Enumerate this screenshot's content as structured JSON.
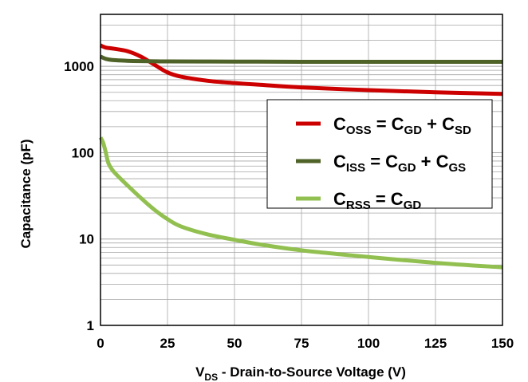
{
  "chart_data": {
    "type": "line",
    "title": "",
    "xlabel": {
      "main": "V",
      "sub": "DS",
      "rest": " - Drain-to-Source Voltage (V)"
    },
    "ylabel": "Capacitance (pF)",
    "xlim": [
      0,
      150
    ],
    "ylim": [
      1,
      4000
    ],
    "yscale": "log",
    "grid": true,
    "legend_position": "right-center",
    "x_ticks": [
      "0",
      "25",
      "50",
      "75",
      "100",
      "125",
      "150"
    ],
    "y_ticks": [
      "1",
      "10",
      "100",
      "1000"
    ],
    "series": [
      {
        "name": "C_OSS = C_GD + C_SD",
        "legend": [
          [
            "C",
            "OSS"
          ],
          [
            " = C",
            null
          ],
          [
            "",
            "GD"
          ],
          [
            " + C",
            null
          ],
          [
            "",
            "SD"
          ]
        ],
        "color": "#cc0000",
        "x": [
          0,
          2,
          5,
          10,
          15,
          20,
          25,
          30,
          40,
          50,
          60,
          75,
          100,
          125,
          150
        ],
        "y": [
          1750,
          1650,
          1600,
          1500,
          1300,
          1050,
          850,
          760,
          680,
          640,
          610,
          570,
          530,
          500,
          480
        ]
      },
      {
        "name": "C_ISS = C_GD + C_GS",
        "legend": [
          [
            "C",
            "ISS"
          ],
          [
            " = C",
            null
          ],
          [
            "",
            "GD"
          ],
          [
            " + C",
            null
          ],
          [
            "",
            "GS"
          ]
        ],
        "color": "#4f6228",
        "x": [
          0,
          2,
          5,
          10,
          15,
          20,
          25,
          50,
          75,
          100,
          125,
          150
        ],
        "y": [
          1300,
          1220,
          1180,
          1160,
          1150,
          1145,
          1140,
          1135,
          1130,
          1130,
          1130,
          1130
        ]
      },
      {
        "name": "C_RSS = C_GD",
        "legend": [
          [
            "C",
            "RSS"
          ],
          [
            " = C",
            null
          ],
          [
            "",
            "GD"
          ]
        ],
        "color": "#92c050",
        "x": [
          0,
          1,
          2,
          3,
          5,
          10,
          15,
          20,
          25,
          30,
          40,
          50,
          60,
          75,
          100,
          125,
          150
        ],
        "y": [
          150,
          130,
          100,
          75,
          60,
          42,
          30,
          22,
          17,
          14,
          11.3,
          9.8,
          8.6,
          7.4,
          6.2,
          5.3,
          4.7
        ]
      }
    ]
  }
}
